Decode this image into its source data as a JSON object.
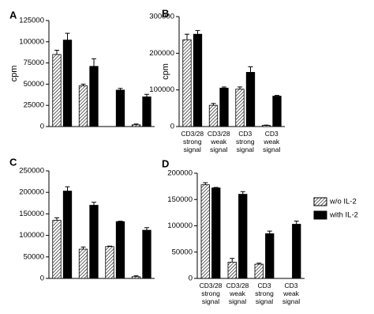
{
  "chart_data": [
    {
      "type": "bar",
      "label": "A",
      "ylabel": "cpm",
      "categories": [
        null,
        null,
        null,
        null
      ],
      "series": [
        {
          "color": "#000000",
          "hatch": true,
          "values": [
            85000,
            48000,
            0,
            2000
          ],
          "error": [
            5000,
            2000,
            null,
            1000
          ]
        },
        {
          "color": "#000000",
          "values": [
            102000,
            71000,
            43000,
            35000
          ],
          "error": [
            8000,
            9000,
            2000,
            3000
          ]
        }
      ],
      "ylim": [
        0,
        125000
      ],
      "yticks": [
        0,
        25000,
        50000,
        75000,
        100000,
        125000
      ]
    },
    {
      "type": "bar",
      "label": "B",
      "ylabel": "cpm",
      "categories": [
        "CD3/28\nstrong\nsignal",
        "CD3/28\nweak\nsignal",
        "CD3\nstrong\nsignal",
        "CD3\nweak\nsignal"
      ],
      "series": [
        {
          "color": "#000000",
          "hatch": true,
          "values": [
            237000,
            58000,
            102000,
            3000
          ],
          "error": [
            15000,
            5000,
            6000,
            1000
          ]
        },
        {
          "color": "#000000",
          "values": [
            252000,
            105000,
            148000,
            83000
          ],
          "error": [
            10000,
            3000,
            15000,
            2000
          ]
        }
      ],
      "ylim": [
        0,
        300000
      ],
      "yticks": [
        0,
        100000,
        200000,
        300000
      ]
    },
    {
      "type": "bar",
      "label": "C",
      "categories": [
        null,
        null,
        null,
        null
      ],
      "series": [
        {
          "color": "#000000",
          "hatch": true,
          "values": [
            135000,
            68000,
            74000,
            4000
          ],
          "error": [
            6000,
            5000,
            1000,
            2000
          ]
        },
        {
          "color": "#000000",
          "values": [
            203000,
            170000,
            132000,
            112000
          ],
          "error": [
            10000,
            7000,
            1000,
            6000
          ]
        }
      ],
      "ylim": [
        0,
        250000
      ],
      "yticks": [
        0,
        50000,
        100000,
        150000,
        200000,
        250000
      ]
    },
    {
      "type": "bar",
      "label": "D",
      "categories": [
        "CD3/28\nstrong\nsignal",
        "CD3/28\nweak\nsignal",
        "CD3\nstrong\nsignal",
        "CD3\nweak\nsignal"
      ],
      "series": [
        {
          "name": "w/o IL-2",
          "color": "#000000",
          "hatch": true,
          "values": [
            178000,
            31000,
            27000,
            0
          ],
          "error": [
            4000,
            7000,
            2000,
            null
          ]
        },
        {
          "name": "with IL-2",
          "color": "#000000",
          "values": [
            172000,
            160000,
            85000,
            103000
          ],
          "error": [
            1000,
            5000,
            5000,
            6000
          ]
        }
      ],
      "ylim": [
        0,
        200000
      ],
      "yticks": [
        0,
        50000,
        100000,
        150000,
        200000
      ],
      "legend": "right"
    }
  ]
}
